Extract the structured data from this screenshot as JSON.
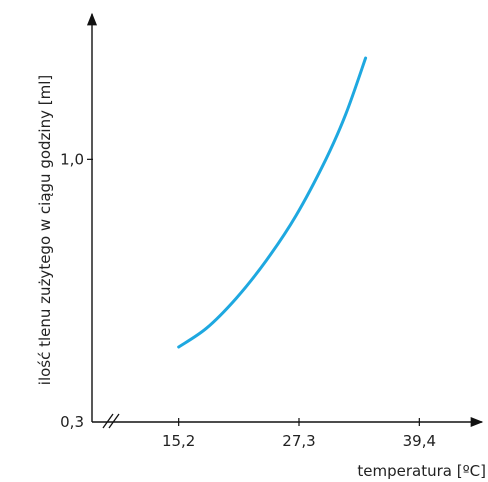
{
  "chart_data": {
    "type": "line",
    "xlabel": "temperatura [ºC]",
    "ylabel": "ilość tlenu zużytego w ciągu godziny [ml]",
    "xlim": [
      9.1,
      45.5
    ],
    "ylim": [
      0.3,
      1.35
    ],
    "x_axis_break": true,
    "x_ticks": [
      {
        "value": 15.2,
        "label": "15,2"
      },
      {
        "value": 27.3,
        "label": "27,3"
      },
      {
        "value": 39.4,
        "label": "39,4"
      }
    ],
    "y_ticks": [
      {
        "value": 0.3,
        "label": "0,3"
      },
      {
        "value": 1.0,
        "label": "1,0"
      }
    ],
    "grid": false,
    "series": [
      {
        "color": "#1ea8e0",
        "x": [
          15.2,
          18.0,
          21.0,
          24.0,
          27.0,
          30.0,
          32.0,
          34.0
        ],
        "y": [
          0.5,
          0.55,
          0.63,
          0.73,
          0.85,
          1.0,
          1.12,
          1.27
        ]
      }
    ]
  }
}
